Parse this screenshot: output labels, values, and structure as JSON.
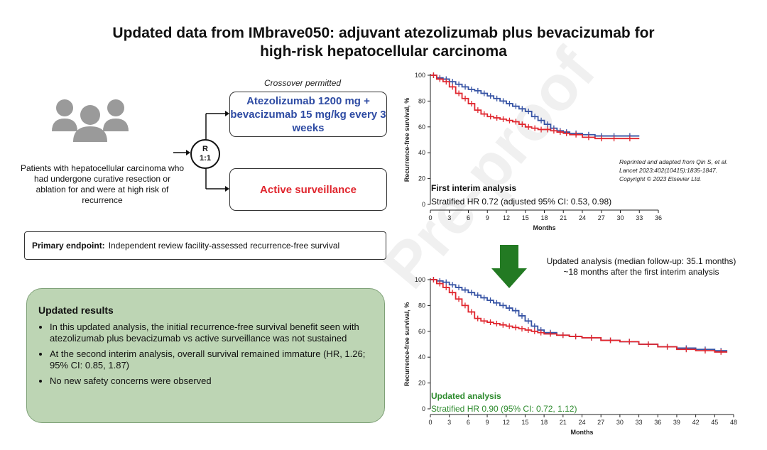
{
  "title_line1": "Updated data from IMbrave050: adjuvant atezolizumab plus bevacizumab for",
  "title_line2": "high-risk hepatocellular carcinoma",
  "crossover": "Crossover permitted",
  "arm1": "Atezolizumab 1200 mg + bevacizumab 15 mg/kg every 3 weeks",
  "arm2": "Active surveillance",
  "rand_line1": "R",
  "rand_line2": "1:1",
  "patients": "Patients with hepatocellular carcinoma who had undergone curative resection or ablation for and were at high risk of recurrence",
  "endpoint_label": "Primary endpoint:",
  "endpoint_text": "Independent review facility-assessed recurrence-free survival",
  "results": {
    "heading": "Updated results",
    "bullets": [
      "In this updated analysis, the initial recurrence-free survival benefit seen with atezolizumab plus bevacizumab vs active surveillance was not sustained",
      "At the second interim analysis, overall survival remained immature (HR, 1.26; 95% CI: 0.85, 1.87)",
      "No new safety concerns were observed"
    ]
  },
  "reprint_note": [
    "Reprinted and adapted from Qin S, et al.",
    "Lancet 2023;402(10415):1835-1847.",
    "Copyright © 2023 Elsevier Ltd."
  ],
  "update_note": [
    "Updated analysis (median follow-up: 35.1 months)",
    "~18 months after the first interim analysis"
  ],
  "watermark": "Pre-proof",
  "colors": {
    "atezo": "#3653a4",
    "surveillance": "#e0262e",
    "updated_green": "#2e8b2e",
    "arrow": "#237a23",
    "results_bg": "#bdd5b4"
  },
  "chart_data": [
    {
      "type": "line",
      "title": "First interim analysis",
      "subtitle": "Stratified HR 0.72 (adjusted 95% CI: 0.53, 0.98)",
      "xlabel": "Months",
      "ylabel": "Recurrence-free survival, %",
      "xlim": [
        0,
        36
      ],
      "ylim": [
        0,
        100
      ],
      "xticks": [
        0,
        3,
        6,
        9,
        12,
        15,
        18,
        21,
        24,
        27,
        30,
        33,
        36
      ],
      "yticks": [
        0,
        20,
        40,
        60,
        80,
        100
      ],
      "series": [
        {
          "color": "#3653a4",
          "x": [
            0,
            1,
            2,
            3,
            4,
            5,
            6,
            7,
            8,
            9,
            10,
            11,
            12,
            13,
            14,
            15,
            16,
            17,
            18,
            19,
            20,
            21,
            22,
            24,
            26,
            28,
            30,
            33
          ],
          "y": [
            100,
            98,
            97,
            95,
            93,
            91,
            89,
            88,
            86,
            84,
            82,
            80,
            78,
            76,
            74,
            72,
            68,
            65,
            62,
            59,
            57,
            56,
            55,
            54,
            53,
            53,
            53,
            53
          ]
        },
        {
          "color": "#e0262e",
          "x": [
            0,
            1,
            2,
            3,
            4,
            5,
            6,
            7,
            8,
            9,
            10,
            11,
            12,
            13,
            14,
            15,
            16,
            17,
            18,
            19,
            20,
            21,
            22,
            24,
            26,
            28,
            30,
            33
          ],
          "y": [
            100,
            97,
            95,
            91,
            86,
            82,
            78,
            73,
            70,
            68,
            67,
            66,
            65,
            64,
            62,
            60,
            59,
            58,
            58,
            57,
            56,
            55,
            54,
            52,
            51,
            51,
            51,
            51
          ]
        }
      ]
    },
    {
      "type": "line",
      "title": "Updated analysis",
      "subtitle": "Stratified HR 0.90 (95% CI: 0.72, 1.12)",
      "xlabel": "Months",
      "ylabel": "Recurrence-free survival, %",
      "xlim": [
        0,
        48
      ],
      "ylim": [
        0,
        100
      ],
      "xticks": [
        0,
        3,
        6,
        9,
        12,
        15,
        18,
        21,
        24,
        27,
        30,
        33,
        36,
        39,
        42,
        45,
        48
      ],
      "yticks": [
        0,
        20,
        40,
        60,
        80,
        100
      ],
      "series": [
        {
          "color": "#3653a4",
          "x": [
            0,
            1,
            2,
            3,
            4,
            5,
            6,
            7,
            8,
            9,
            10,
            11,
            12,
            13,
            14,
            15,
            16,
            17,
            18,
            20,
            22,
            24,
            27,
            30,
            33,
            36,
            39,
            42,
            45,
            47
          ],
          "y": [
            100,
            99,
            98,
            96,
            94,
            92,
            90,
            88,
            86,
            84,
            82,
            80,
            78,
            76,
            72,
            68,
            64,
            61,
            59,
            57,
            56,
            55,
            53,
            52,
            50,
            48,
            47,
            46,
            45,
            45
          ]
        },
        {
          "color": "#e0262e",
          "x": [
            0,
            1,
            2,
            3,
            4,
            5,
            6,
            7,
            8,
            9,
            10,
            11,
            12,
            13,
            14,
            15,
            16,
            17,
            18,
            20,
            22,
            24,
            27,
            30,
            33,
            36,
            39,
            42,
            45,
            47
          ],
          "y": [
            100,
            97,
            94,
            90,
            85,
            80,
            75,
            70,
            68,
            67,
            66,
            65,
            64,
            63,
            62,
            61,
            60,
            59,
            58,
            57,
            56,
            55,
            53,
            52,
            50,
            48,
            46,
            45,
            44,
            44
          ]
        }
      ]
    }
  ]
}
